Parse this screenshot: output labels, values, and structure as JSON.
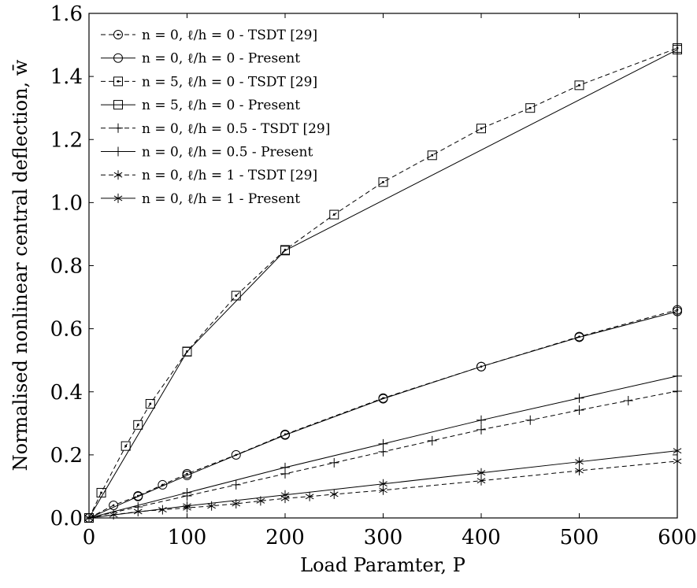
{
  "chart_data": {
    "type": "line",
    "xlabel": "Load Paramter, P",
    "ylabel": "Normalised nonlinear central deflection, w̄",
    "xlim": [
      0,
      600
    ],
    "ylim": [
      0,
      1.6
    ],
    "xticks": [
      "0",
      "100",
      "200",
      "300",
      "400",
      "500",
      "600"
    ],
    "yticks": [
      "0.0",
      "0.2",
      "0.4",
      "0.6",
      "0.8",
      "1.0",
      "1.2",
      "1.4",
      "1.6"
    ],
    "grid": false,
    "legend_position": "top-left",
    "series": [
      {
        "name": "n = 0, ℓ/h = 0 - TSDT [29]",
        "marker": "circle-dot",
        "line": "dashed",
        "x": [
          0,
          25,
          50,
          75,
          100,
          150,
          200,
          300,
          400,
          500,
          600
        ],
        "y": [
          0,
          0.04,
          0.07,
          0.105,
          0.14,
          0.2,
          0.265,
          0.38,
          0.48,
          0.575,
          0.66
        ]
      },
      {
        "name": "n = 0, ℓ/h = 0 - Present",
        "marker": "circle",
        "line": "solid",
        "x": [
          0,
          50,
          100,
          200,
          300,
          400,
          500,
          600
        ],
        "y": [
          0,
          0.068,
          0.135,
          0.263,
          0.378,
          0.48,
          0.573,
          0.655
        ]
      },
      {
        "name": "n = 5, ℓ/h = 0 - TSDT [29]",
        "marker": "square-dot",
        "line": "dashed",
        "x": [
          0,
          12.5,
          37.5,
          50,
          62.5,
          100,
          150,
          200,
          250,
          300,
          350,
          400,
          450,
          500,
          600
        ],
        "y": [
          0,
          0.08,
          0.228,
          0.295,
          0.362,
          0.528,
          0.705,
          0.85,
          0.962,
          1.065,
          1.15,
          1.235,
          1.3,
          1.372,
          1.49
        ]
      },
      {
        "name": "n = 5, ℓ/h = 0 - Present",
        "marker": "square",
        "line": "solid",
        "x": [
          0,
          100,
          200,
          600
        ],
        "y": [
          0,
          0.527,
          0.848,
          1.485
        ]
      },
      {
        "name": "n = 0, ℓ/h = 0.5 - TSDT [29]",
        "marker": "plus",
        "line": "dashed",
        "x": [
          0,
          50,
          100,
          150,
          200,
          250,
          300,
          350,
          400,
          450,
          500,
          550,
          600
        ],
        "y": [
          0,
          0.035,
          0.07,
          0.105,
          0.14,
          0.175,
          0.21,
          0.245,
          0.28,
          0.31,
          0.342,
          0.372,
          0.402
        ]
      },
      {
        "name": "n = 0, ℓ/h = 0.5 - Present",
        "marker": "plus",
        "line": "solid",
        "x": [
          0,
          100,
          200,
          300,
          400,
          500,
          600
        ],
        "y": [
          0,
          0.08,
          0.16,
          0.235,
          0.31,
          0.38,
          0.45
        ]
      },
      {
        "name": "n = 0, ℓ/h = 1 - TSDT [29]",
        "marker": "asterisk",
        "line": "dashed",
        "x": [
          0,
          25,
          50,
          75,
          100,
          125,
          150,
          175,
          200,
          225,
          250,
          300,
          400,
          500,
          600
        ],
        "y": [
          0,
          0.01,
          0.02,
          0.026,
          0.032,
          0.038,
          0.045,
          0.054,
          0.062,
          0.068,
          0.075,
          0.088,
          0.118,
          0.15,
          0.18
        ]
      },
      {
        "name": "n = 0, ℓ/h = 1 - Present",
        "marker": "asterisk",
        "line": "solid",
        "x": [
          0,
          100,
          200,
          300,
          400,
          500,
          600
        ],
        "y": [
          0,
          0.038,
          0.073,
          0.108,
          0.143,
          0.178,
          0.213
        ]
      }
    ]
  }
}
